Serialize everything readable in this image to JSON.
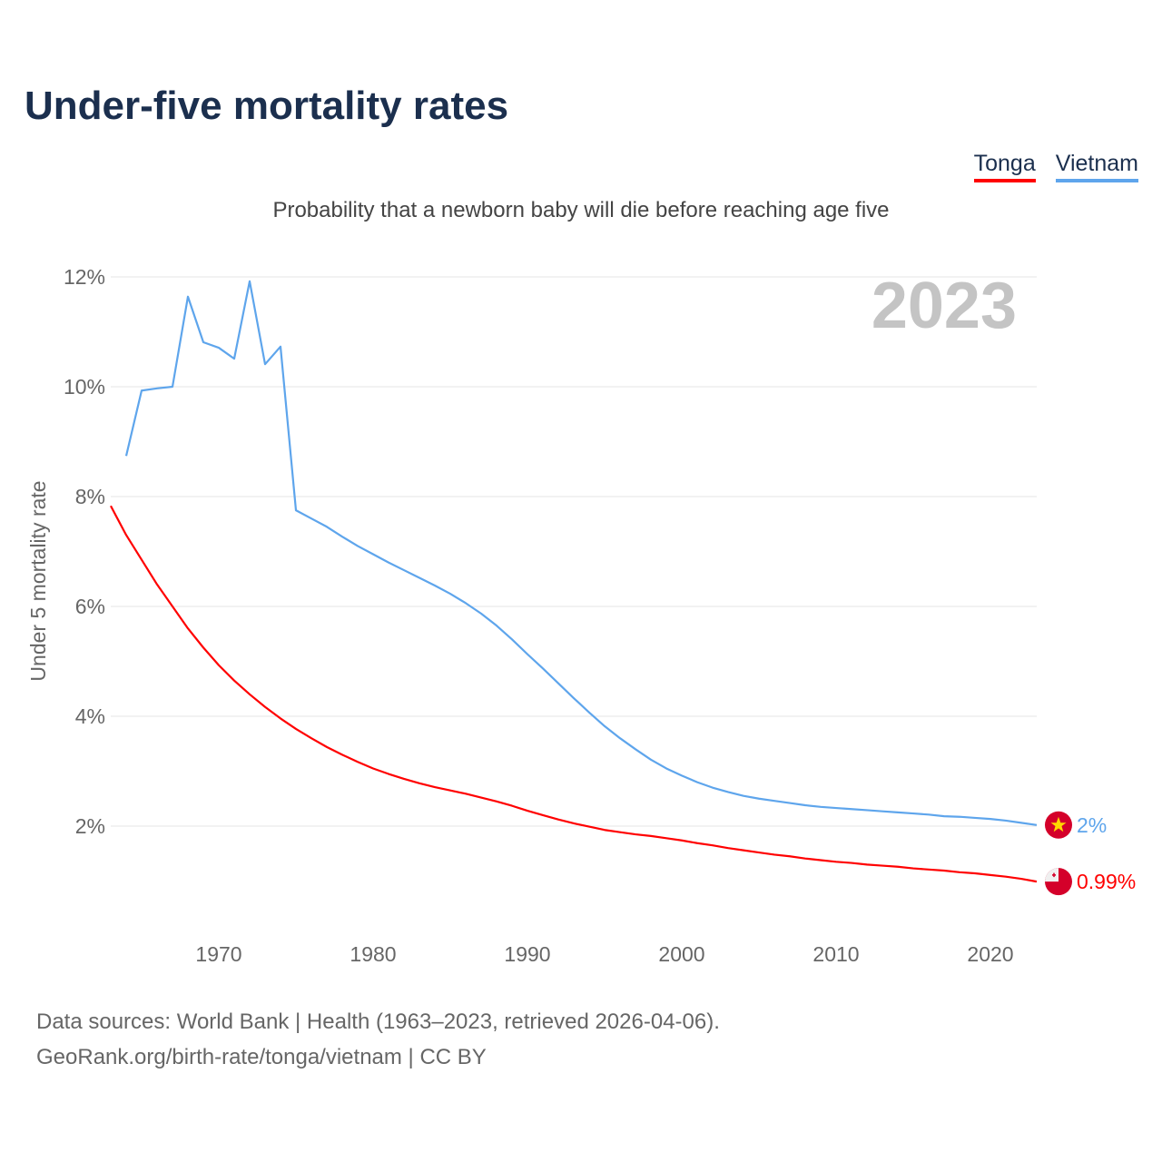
{
  "title": "Under-five mortality rates",
  "subtitle": "Probability that a newborn baby will die before reaching age five",
  "year_label": "2023",
  "source": [
    "Data sources: World Bank | Health (1963–2023, retrieved 2026-04-06).",
    "GeoRank.org/birth-rate/tonga/vietnam | CC BY"
  ],
  "chart_data": {
    "type": "line",
    "title": "Under-five mortality rates",
    "xlabel": "",
    "ylabel": "Under 5 mortality rate",
    "xlim": [
      1963,
      2023
    ],
    "ylim": [
      0,
      12
    ],
    "xticks": [
      1970,
      1980,
      1990,
      2000,
      2010,
      2020
    ],
    "yticks": [
      2,
      4,
      6,
      8,
      10,
      12
    ],
    "ytick_labels": [
      "2%",
      "4%",
      "6%",
      "8%",
      "10%",
      "12%"
    ],
    "grid": true,
    "legend": "top-right",
    "series": [
      {
        "name": "Tonga",
        "color": "#ff0000",
        "end_label": "0.99%",
        "flag": "tonga-flag",
        "start": 1963,
        "values": [
          7.83,
          7.3,
          6.85,
          6.4,
          6.0,
          5.6,
          5.25,
          4.93,
          4.65,
          4.4,
          4.17,
          3.96,
          3.77,
          3.6,
          3.44,
          3.3,
          3.17,
          3.05,
          2.95,
          2.86,
          2.78,
          2.71,
          2.65,
          2.59,
          2.52,
          2.45,
          2.37,
          2.28,
          2.2,
          2.12,
          2.05,
          1.99,
          1.93,
          1.89,
          1.85,
          1.82,
          1.78,
          1.74,
          1.69,
          1.65,
          1.6,
          1.56,
          1.52,
          1.48,
          1.45,
          1.41,
          1.38,
          1.35,
          1.33,
          1.3,
          1.28,
          1.26,
          1.23,
          1.21,
          1.19,
          1.16,
          1.14,
          1.11,
          1.08,
          1.04,
          0.99
        ]
      },
      {
        "name": "Vietnam",
        "color": "#5ea5ec",
        "end_label": "2%",
        "flag": "vietnam-flag",
        "start": 1964,
        "values": [
          8.74,
          9.93,
          9.97,
          10.0,
          11.64,
          10.81,
          10.71,
          10.51,
          11.92,
          10.41,
          10.73,
          7.75,
          7.6,
          7.45,
          7.27,
          7.1,
          6.95,
          6.8,
          6.66,
          6.52,
          6.38,
          6.23,
          6.06,
          5.87,
          5.65,
          5.4,
          5.13,
          4.87,
          4.6,
          4.33,
          4.07,
          3.82,
          3.6,
          3.4,
          3.21,
          3.05,
          2.92,
          2.8,
          2.7,
          2.62,
          2.55,
          2.5,
          2.46,
          2.42,
          2.38,
          2.35,
          2.33,
          2.31,
          2.29,
          2.27,
          2.25,
          2.23,
          2.21,
          2.18,
          2.17,
          2.15,
          2.13,
          2.1,
          2.06,
          2.02
        ]
      }
    ]
  }
}
